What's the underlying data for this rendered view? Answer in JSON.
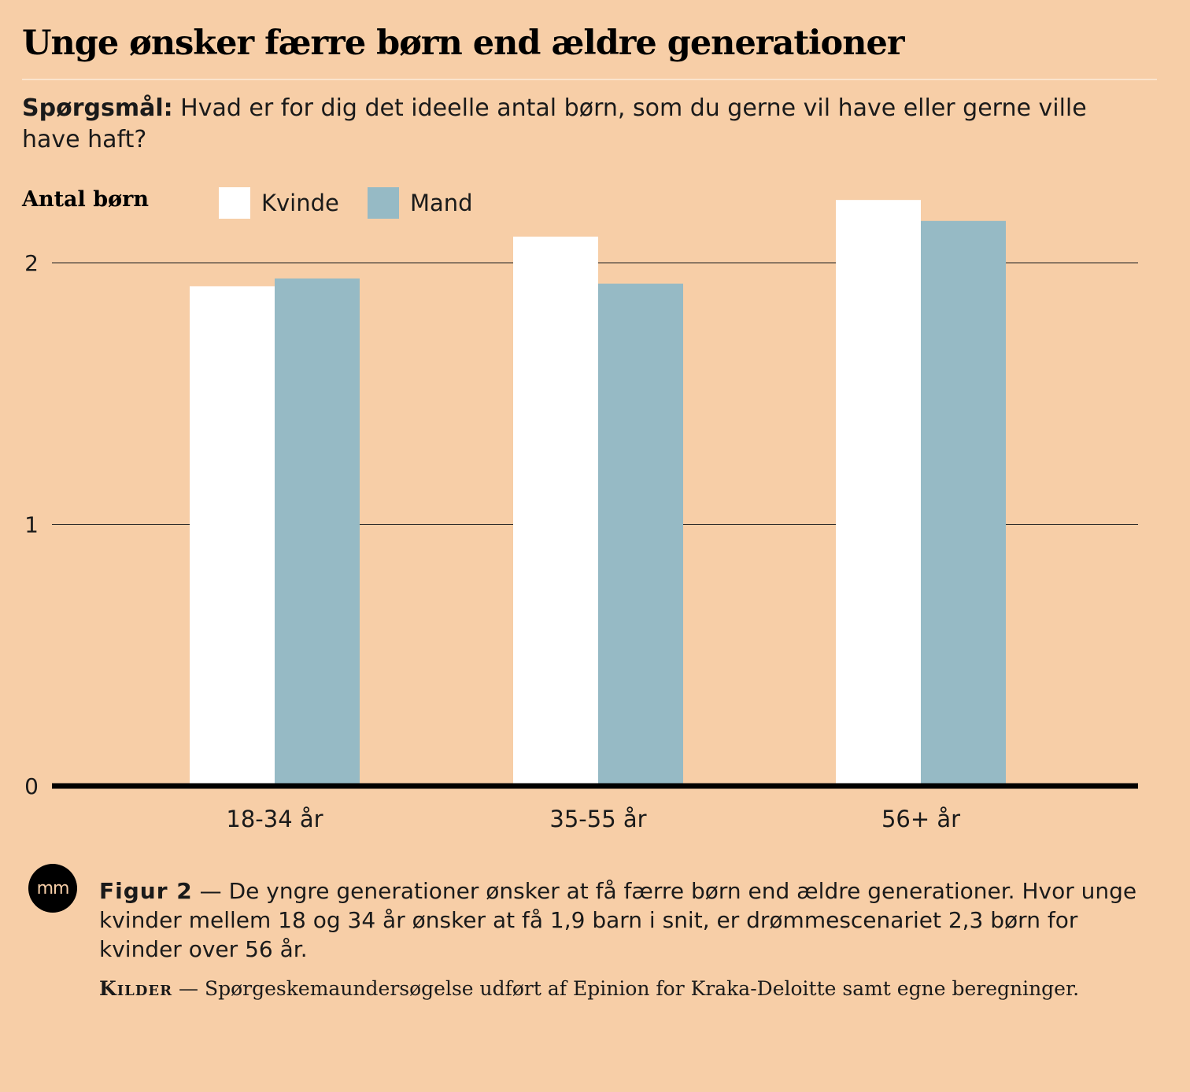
{
  "title": "Unge ønsker færre børn end ældre generationer",
  "question": {
    "label": "Spørgsmål:",
    "text": "Hvad er for dig det ideelle antal børn, som du gerne vil have eller gerne ville have haft?"
  },
  "footer": {
    "logo_text": "mm",
    "figure_label": "Figur 2",
    "figure_text": "De yngre generationer ønsker at få færre børn end ældre generationer. Hvor unge kvinder mellem 18 og 34 år ønsker at få 1,9 barn i snit, er drømmescenariet 2,3 børn for kvinder over 56 år.",
    "sources_label": "Kilder",
    "sources_text": "Spørgeskemaundersøgelse udført af Epinion for Kraka-Deloitte samt egne beregninger.",
    "dash": "—"
  },
  "chart_data": {
    "type": "bar",
    "title": "Unge ønsker færre børn end ældre generationer",
    "ylabel": "Antal børn",
    "xlabel": "",
    "categories": [
      "18-34 år",
      "35-55 år",
      "56+ år"
    ],
    "series": [
      {
        "name": "Kvinde",
        "color": "#ffffff",
        "values": [
          1.91,
          2.1,
          2.24
        ]
      },
      {
        "name": "Mand",
        "color": "#96bac5",
        "values": [
          1.94,
          1.92,
          2.16
        ]
      }
    ],
    "ylim": [
      0,
      2.25
    ],
    "yticks": [
      0,
      1,
      2
    ],
    "ytick_labels": [
      "0",
      "1",
      "2"
    ],
    "grid": true,
    "legend_position": "top"
  }
}
